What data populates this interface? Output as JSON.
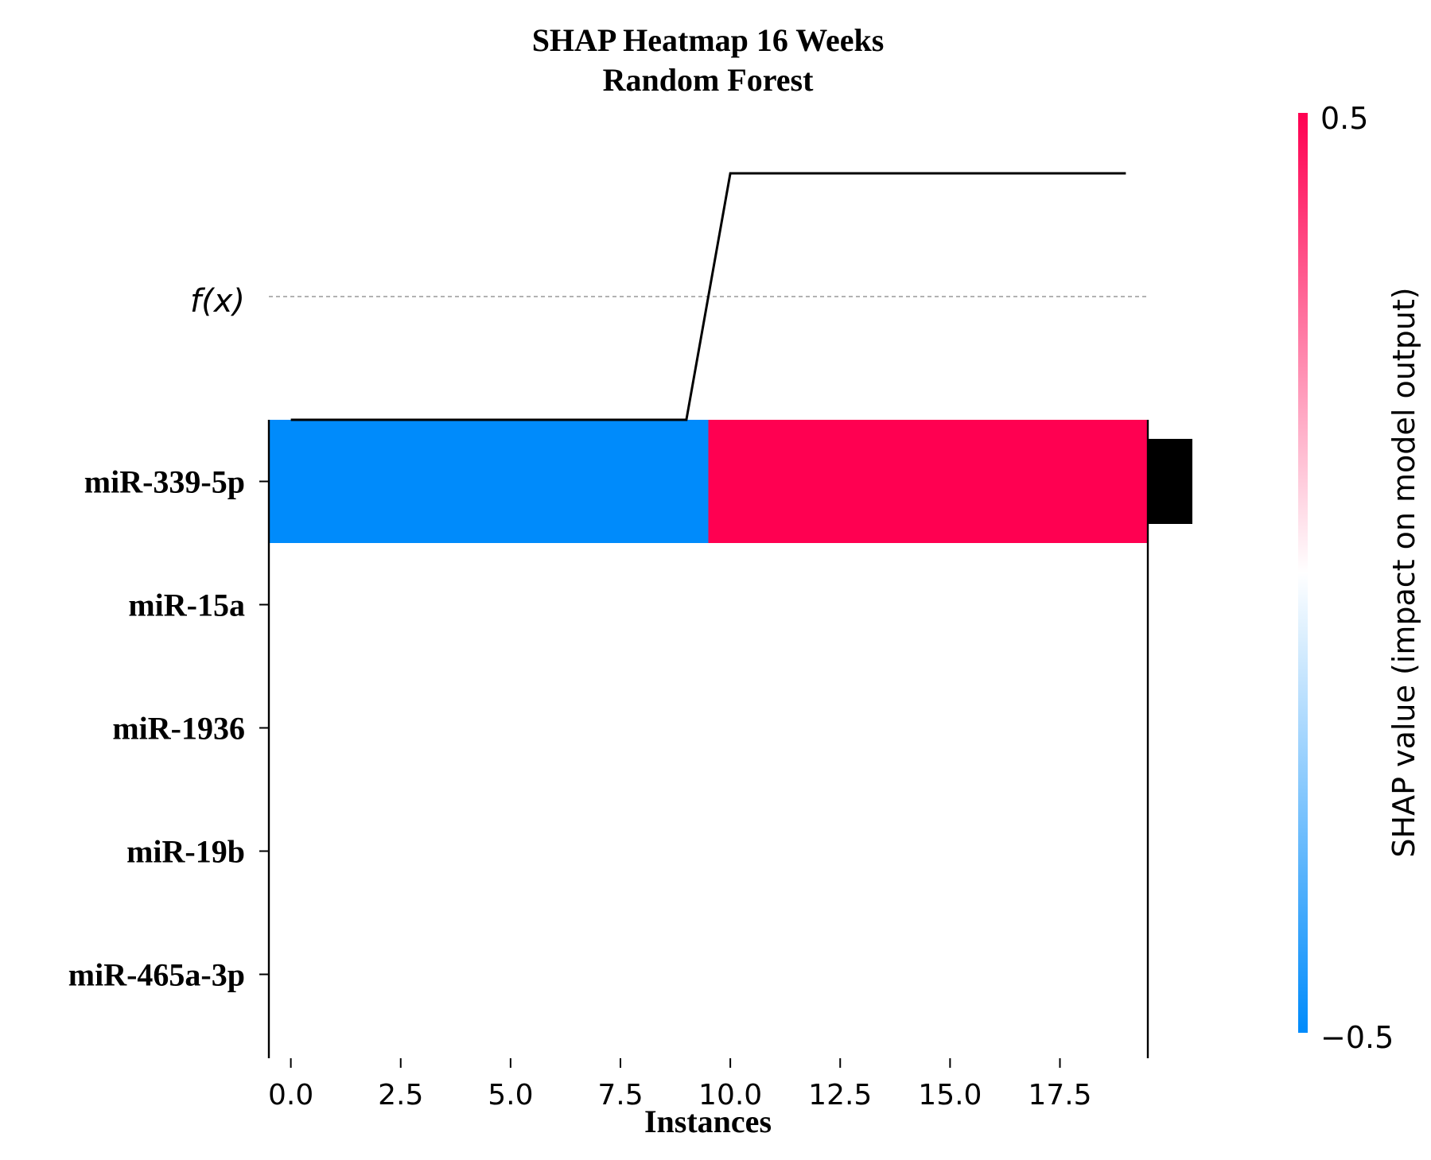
{
  "chart_data": {
    "type": "heatmap",
    "title": "SHAP Heatmap 16 Weeks",
    "subtitle": "Random Forest",
    "xlabel": "Instances",
    "fx_label": "f(x)",
    "features": [
      "miR-339-5p",
      "miR-15a",
      "miR-1936",
      "miR-19b",
      "miR-465a-3p"
    ],
    "x_ticks": [
      "0.0",
      "2.5",
      "5.0",
      "7.5",
      "10.0",
      "12.5",
      "15.0",
      "17.5"
    ],
    "x_tick_values": [
      0,
      2.5,
      5,
      7.5,
      10,
      12.5,
      15,
      17.5
    ],
    "xlim": [
      -0.5,
      19.5
    ],
    "n_instances": 20,
    "shap_values": [
      [
        -0.5,
        -0.5,
        -0.5,
        -0.5,
        -0.5,
        -0.5,
        -0.5,
        -0.5,
        -0.5,
        -0.5,
        0.5,
        0.5,
        0.5,
        0.5,
        0.5,
        0.5,
        0.5,
        0.5,
        0.5,
        0.5
      ],
      [
        0,
        0,
        0,
        0,
        0,
        0,
        0,
        0,
        0,
        0,
        0,
        0,
        0,
        0,
        0,
        0,
        0,
        0,
        0,
        0
      ],
      [
        0,
        0,
        0,
        0,
        0,
        0,
        0,
        0,
        0,
        0,
        0,
        0,
        0,
        0,
        0,
        0,
        0,
        0,
        0,
        0
      ],
      [
        0,
        0,
        0,
        0,
        0,
        0,
        0,
        0,
        0,
        0,
        0,
        0,
        0,
        0,
        0,
        0,
        0,
        0,
        0,
        0
      ],
      [
        0,
        0,
        0,
        0,
        0,
        0,
        0,
        0,
        0,
        0,
        0,
        0,
        0,
        0,
        0,
        0,
        0,
        0,
        0,
        0
      ]
    ],
    "fx_values": [
      0,
      0,
      0,
      0,
      0,
      0,
      0,
      0,
      0,
      0,
      1,
      1,
      1,
      1,
      1,
      1,
      1,
      1,
      1,
      1
    ],
    "fx_base": 0.5,
    "feature_importance": [
      1,
      0,
      0,
      0,
      0
    ],
    "colorbar": {
      "label": "SHAP value (impact on model output)",
      "min": -0.5,
      "max": 0.5,
      "min_label": "−0.5",
      "max_label": "0.5",
      "colors": [
        "#008bfb",
        "#ffffff",
        "#ff0051"
      ]
    },
    "grid": false
  }
}
